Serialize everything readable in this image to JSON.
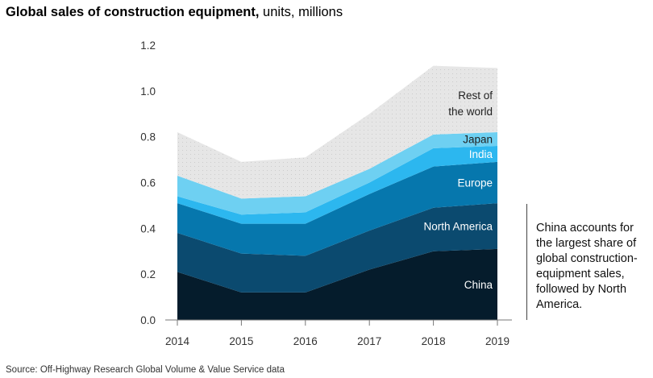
{
  "title": {
    "bold": "Global sales of construction equipment,",
    "rest": " units, millions"
  },
  "source": "Source: Off-Highway Research Global Volume & Value Service data",
  "note": "China accounts for the largest share of global construction-equipment sales, followed by North America.",
  "colors": {
    "China": "#051c2c",
    "North America": "#0b4a6f",
    "Europe": "#0677ad",
    "India": "#2cb7ef",
    "Japan": "#6ed0f2",
    "Rest of the world": "#e6e6e6"
  },
  "chart_data": {
    "type": "area",
    "stacked": true,
    "title": "Global sales of construction equipment, units, millions",
    "xlabel": "",
    "ylabel": "units, millions",
    "categories": [
      "2014",
      "2015",
      "2016",
      "2017",
      "2018",
      "2019"
    ],
    "y_ticks": [
      "0.0",
      "0.2",
      "0.4",
      "0.6",
      "0.8",
      "1.0",
      "1.2"
    ],
    "ylim": [
      0,
      1.2
    ],
    "series": [
      {
        "name": "China",
        "label": "China",
        "values": [
          0.21,
          0.12,
          0.12,
          0.22,
          0.3,
          0.31
        ]
      },
      {
        "name": "North America",
        "label": "North America",
        "values": [
          0.17,
          0.17,
          0.16,
          0.17,
          0.19,
          0.2
        ]
      },
      {
        "name": "Europe",
        "label": "Europe",
        "values": [
          0.13,
          0.13,
          0.14,
          0.16,
          0.18,
          0.18
        ]
      },
      {
        "name": "India",
        "label": "India",
        "values": [
          0.03,
          0.04,
          0.05,
          0.05,
          0.08,
          0.07
        ]
      },
      {
        "name": "Japan",
        "label": "Japan",
        "values": [
          0.09,
          0.07,
          0.07,
          0.06,
          0.06,
          0.06
        ]
      },
      {
        "name": "Rest of the world",
        "label": "Rest of the world",
        "label_lines": [
          "Rest of",
          "the world"
        ],
        "values": [
          0.19,
          0.16,
          0.17,
          0.24,
          0.3,
          0.28
        ]
      }
    ]
  }
}
